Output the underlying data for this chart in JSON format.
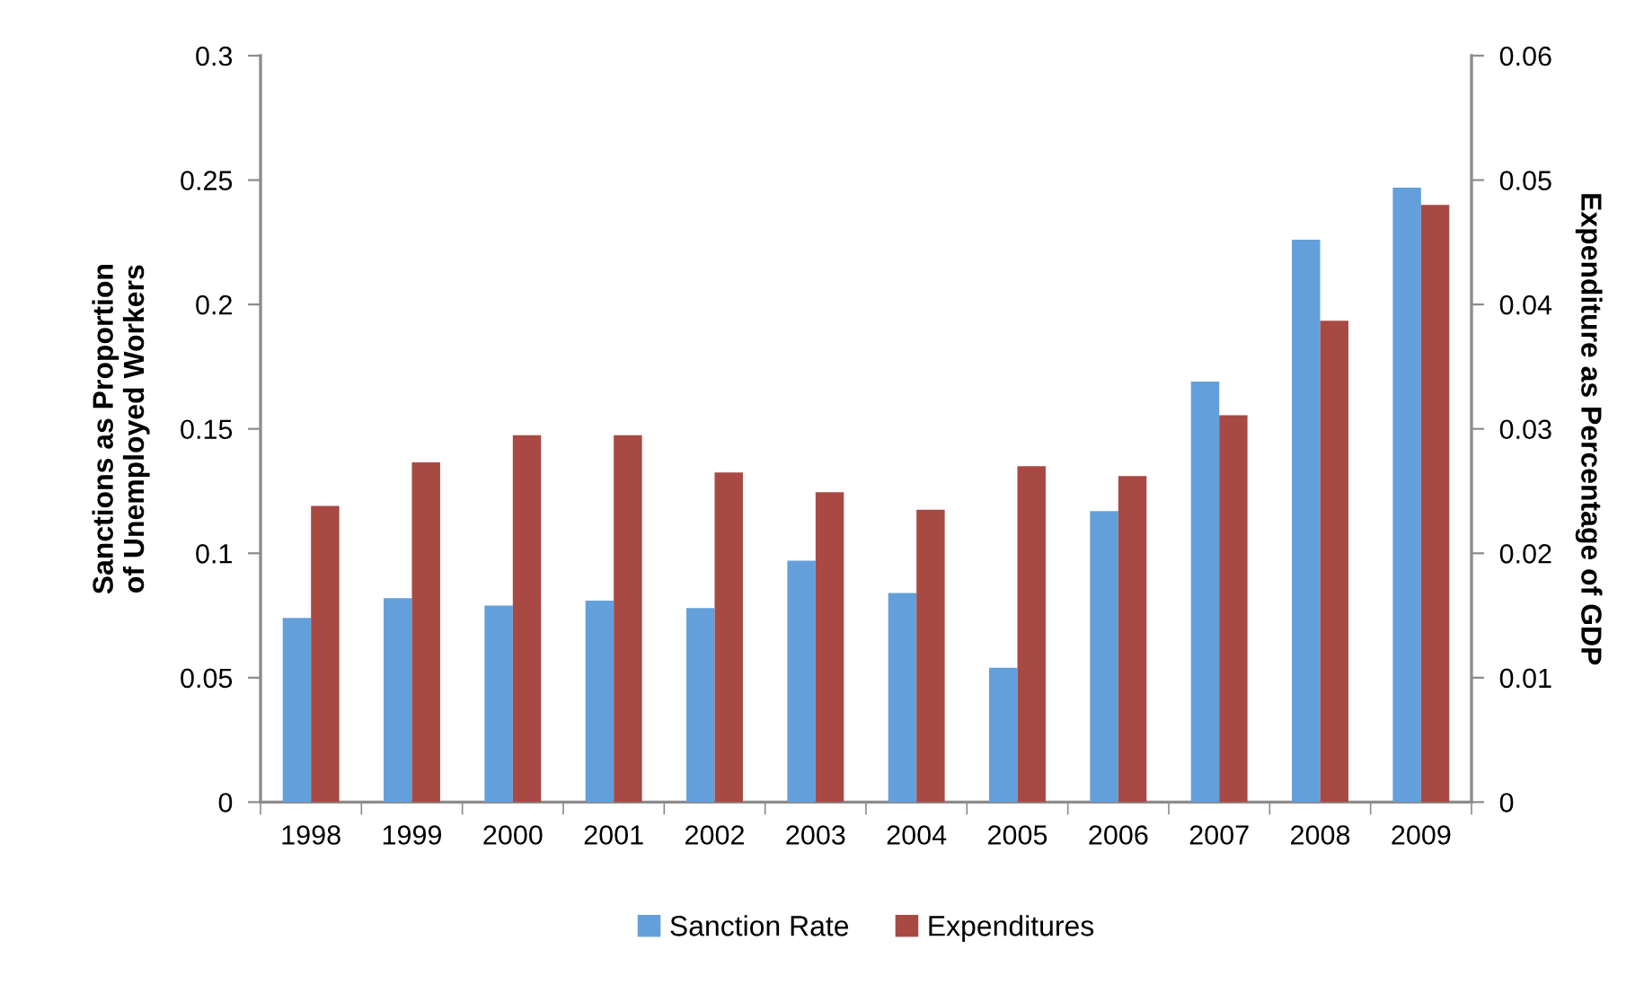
{
  "chart_data": {
    "type": "bar",
    "categories": [
      "1998",
      "1999",
      "2000",
      "2001",
      "2002",
      "2003",
      "2004",
      "2005",
      "2006",
      "2007",
      "2008",
      "2009"
    ],
    "ylabel": "Sanctions as Proportion\nof Unemployed Workers",
    "y2label": "Expenditure as Percentage of GDP",
    "ylim": [
      0,
      0.3
    ],
    "yticks": [
      0,
      0.05,
      0.1,
      0.15,
      0.2,
      0.25,
      0.3
    ],
    "y2lim": [
      0,
      0.06
    ],
    "y2ticks": [
      0,
      0.01,
      0.02,
      0.03,
      0.04,
      0.05,
      0.06
    ],
    "series": [
      {
        "name": "Sanction Rate",
        "color": "#63a0db",
        "values": [
          0.074,
          0.082,
          0.079,
          0.081,
          0.078,
          0.097,
          0.084,
          0.054,
          0.117,
          0.169,
          0.226,
          0.247
        ]
      },
      {
        "name": "Expenditures",
        "color": "#a84944",
        "axis": "y2",
        "values": [
          0.0238,
          0.0273,
          0.0295,
          0.0295,
          0.0265,
          0.0249,
          0.0235,
          0.027,
          0.0262,
          0.0311,
          0.0387,
          0.048
        ]
      }
    ],
    "legend": "bottom"
  }
}
